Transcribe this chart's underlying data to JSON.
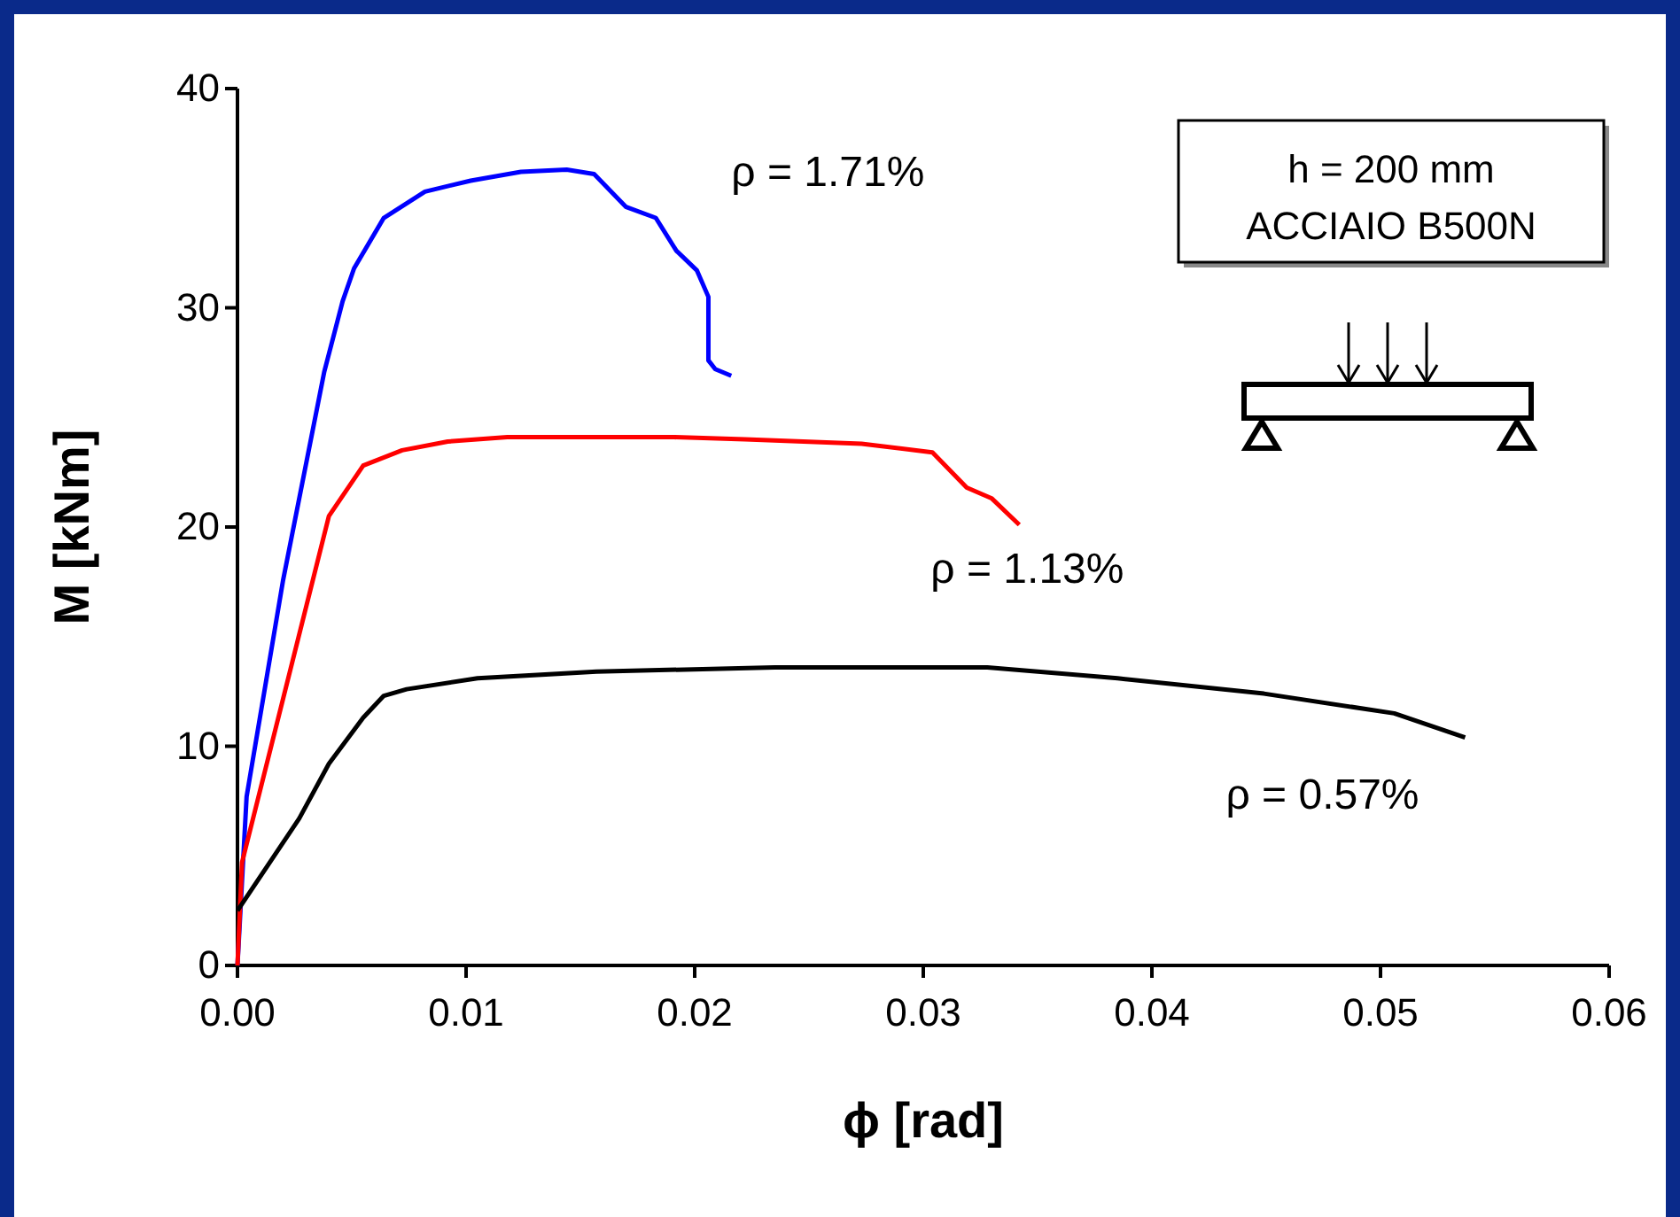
{
  "chart_data": {
    "type": "line",
    "xlabel": "ϕ [rad]",
    "ylabel": "M [kNm]",
    "xlim": [
      0,
      0.06
    ],
    "ylim": [
      0,
      40
    ],
    "xticks": [
      {
        "value": 0,
        "label": "0.00"
      },
      {
        "value": 0.01,
        "label": "0.01"
      },
      {
        "value": 0.02,
        "label": "0.02"
      },
      {
        "value": 0.03,
        "label": "0.03"
      },
      {
        "value": 0.04,
        "label": "0.04"
      },
      {
        "value": 0.05,
        "label": "0.05"
      },
      {
        "value": 0.06,
        "label": "0.06"
      }
    ],
    "yticks": [
      0,
      10,
      20,
      30,
      40
    ],
    "grid": false,
    "marker": "none",
    "line_style": "solid",
    "series": [
      {
        "name": "ρ = 1.71%",
        "color": "#0000ff",
        "x": [
          0,
          0.0004,
          0.002,
          0.0038,
          0.0046,
          0.0051,
          0.0064,
          0.0082,
          0.0102,
          0.0124,
          0.0144,
          0.0156,
          0.017,
          0.0183,
          0.0192,
          0.0201,
          0.0206,
          0.0206,
          0.0209,
          0.0216
        ],
        "values": [
          0,
          7.7,
          17.6,
          27.1,
          30.3,
          31.8,
          34.1,
          35.3,
          35.8,
          36.2,
          36.3,
          36.1,
          34.6,
          34.1,
          32.6,
          31.7,
          30.5,
          27.6,
          27.2,
          26.9
        ]
      },
      {
        "name": "ρ = 1.13%",
        "color": "#ff0000",
        "x": [
          0,
          0.0002,
          0.004,
          0.0055,
          0.0072,
          0.0092,
          0.0118,
          0.0191,
          0.0222,
          0.0273,
          0.0304,
          0.0319,
          0.033,
          0.0342
        ],
        "values": [
          0,
          4.7,
          20.5,
          22.8,
          23.5,
          23.9,
          24.1,
          24.1,
          24,
          23.8,
          23.4,
          21.8,
          21.3,
          20.1
        ]
      },
      {
        "name": "ρ = 0.57%",
        "color": "#000000",
        "x": [
          0,
          0.0027,
          0.004,
          0.0055,
          0.0064,
          0.0074,
          0.0105,
          0.0157,
          0.0235,
          0.0328,
          0.0385,
          0.0449,
          0.0506,
          0.0537
        ],
        "values": [
          2.5,
          6.7,
          9.2,
          11.3,
          12.3,
          12.6,
          13.1,
          13.4,
          13.6,
          13.6,
          13.1,
          12.4,
          11.5,
          10.4
        ]
      }
    ],
    "annotations": [
      "h = 200 mm",
      "ACCIAIO B500N"
    ]
  }
}
